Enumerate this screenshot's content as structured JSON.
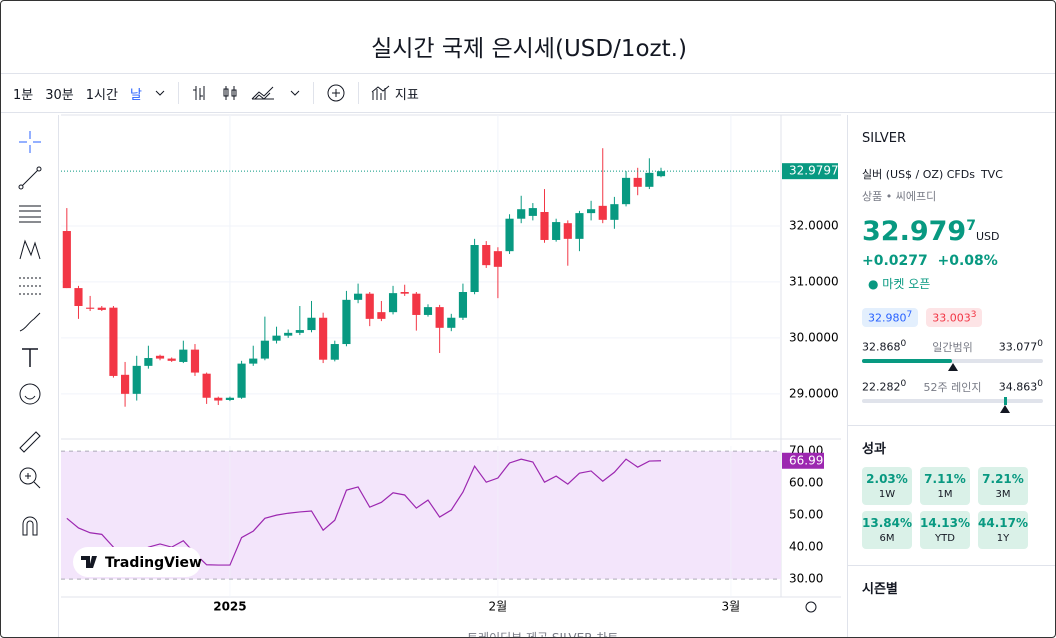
{
  "header": {
    "title": "실시간 국제 은시세(USD/1ozt.)"
  },
  "toolbar": {
    "intervals": [
      "1분",
      "30분",
      "1시간",
      "날"
    ],
    "indicators": "지표"
  },
  "chart_data": {
    "type": "candlestick",
    "open": [
      31.91,
      30.89,
      30.54,
      30.54,
      30.54,
      29.34,
      29.0,
      29.5,
      29.68,
      29.63,
      29.57,
      29.79,
      29.36,
      28.93,
      28.89,
      28.93,
      29.54,
      29.63,
      29.95,
      30.04,
      30.09,
      30.14,
      30.36,
      29.61,
      29.89,
      30.68,
      30.79,
      30.46,
      30.46,
      30.82,
      30.79,
      30.41,
      30.55,
      30.18,
      30.36,
      30.82,
      31.66,
      31.55,
      31.55,
      32.13,
      32.18,
      32.25,
      31.75,
      32.05,
      31.77,
      32.23,
      32.36,
      32.11,
      32.39,
      32.86,
      32.7,
      32.89
    ],
    "high": [
      32.32,
      30.93,
      30.75,
      30.57,
      30.57,
      29.57,
      29.68,
      29.86,
      29.7,
      29.65,
      29.95,
      29.89,
      29.38,
      28.95,
      28.95,
      29.59,
      29.86,
      30.38,
      30.2,
      30.15,
      30.57,
      30.66,
      30.45,
      29.95,
      30.84,
      30.97,
      30.82,
      30.66,
      30.93,
      30.95,
      30.82,
      30.6,
      30.59,
      30.43,
      30.97,
      31.77,
      31.73,
      31.62,
      32.21,
      32.54,
      32.41,
      32.66,
      32.13,
      32.1,
      32.27,
      32.45,
      33.39,
      32.52,
      32.98,
      33.04,
      33.21,
      33.04
    ],
    "low": [
      30.89,
      30.34,
      30.48,
      30.48,
      29.29,
      28.77,
      28.88,
      29.45,
      29.6,
      29.57,
      29.55,
      29.32,
      28.82,
      28.8,
      28.87,
      28.91,
      29.5,
      29.6,
      29.9,
      30.0,
      30.05,
      30.1,
      29.55,
      29.58,
      29.85,
      30.62,
      30.21,
      30.3,
      30.42,
      30.75,
      30.13,
      30.38,
      29.73,
      30.12,
      30.32,
      30.78,
      31.25,
      30.71,
      31.5,
      32.05,
      32.1,
      31.7,
      31.72,
      31.29,
      31.55,
      32.1,
      32.05,
      31.95,
      32.35,
      32.55,
      32.66,
      32.87
    ],
    "close": [
      30.89,
      30.57,
      30.52,
      30.5,
      29.32,
      29.0,
      29.5,
      29.64,
      29.63,
      29.59,
      29.79,
      29.38,
      28.93,
      28.88,
      28.93,
      29.54,
      29.63,
      29.95,
      30.04,
      30.09,
      30.14,
      30.36,
      29.61,
      29.89,
      30.68,
      30.79,
      30.34,
      30.34,
      30.8,
      30.79,
      30.41,
      30.55,
      30.18,
      30.36,
      30.82,
      31.66,
      31.3,
      31.27,
      32.13,
      32.3,
      32.32,
      31.75,
      32.07,
      31.77,
      32.23,
      32.3,
      32.11,
      32.39,
      32.86,
      32.7,
      32.95,
      32.9797
    ],
    "up_color": "#089981",
    "down_color": "#f23645",
    "ylim": [
      28.3,
      33.93
    ],
    "yticks": [
      {
        "value": 29,
        "label": "29.0000"
      },
      {
        "value": 30,
        "label": "30.0000"
      },
      {
        "value": 31,
        "label": "31.0000"
      },
      {
        "value": 32,
        "label": "32.0000"
      }
    ],
    "xlim": [
      -0.5,
      61.3
    ],
    "xticks": [
      {
        "value": 14,
        "label": "2025"
      },
      {
        "value": 37,
        "label": "2월"
      },
      {
        "value": 57,
        "label": "3월"
      }
    ],
    "grid": true,
    "rsi": {
      "color": "#9c27b0",
      "ylim": [
        26.3,
        71.6
      ],
      "values": [
        49,
        46,
        44.5,
        44,
        40,
        36,
        38,
        40,
        41,
        40,
        42,
        38,
        34.5,
        34.4,
        34.4,
        43,
        45,
        49,
        50,
        50.6,
        51,
        51.3,
        45.3,
        48.4,
        57.8,
        58.8,
        52.5,
        54,
        57,
        56.3,
        52.2,
        54.7,
        49.4,
        51.6,
        57.2,
        65.3,
        60.3,
        61.6,
        66.3,
        67.5,
        66.6,
        60.3,
        62.2,
        59.7,
        63.1,
        63.8,
        60.6,
        63.4,
        67.5,
        65,
        66.9,
        66.99
      ],
      "yticks": [
        {
          "value": 30,
          "label": "30.00"
        },
        {
          "value": 40,
          "label": "40.00"
        },
        {
          "value": 50,
          "label": "50.00"
        },
        {
          "value": 60,
          "label": "60.00"
        },
        {
          "value": 70,
          "label": "70.00"
        }
      ]
    },
    "watermark": "TradingView"
  },
  "sidebar": {
    "symbol": "SILVER",
    "description": "실버 (US$ / OZ) CFDs",
    "exchange": "TVC",
    "category": "상품 • 씨에프디",
    "price": {
      "main": "32.979",
      "fraction": "7",
      "currency": "USD"
    },
    "change": "+0.0277",
    "change_pct": "+0.08%",
    "status": "마켓 오픈",
    "bid": {
      "main": "32.980",
      "fraction": "7"
    },
    "ask": {
      "main": "33.003",
      "fraction": "3"
    },
    "day_range": {
      "low": {
        "main": "32.868",
        "fraction": "0"
      },
      "label": "일간범위",
      "high": {
        "main": "33.077",
        "fraction": "0"
      }
    },
    "year_range": {
      "low": {
        "main": "22.282",
        "fraction": "0"
      },
      "label": "52주 레인지",
      "high": {
        "main": "34.863",
        "fraction": "0"
      }
    },
    "performance_title": "성과",
    "performance": [
      {
        "value": "2.03%",
        "period": "1W"
      },
      {
        "value": "7.11%",
        "period": "1M"
      },
      {
        "value": "7.21%",
        "period": "3M"
      },
      {
        "value": "13.84%",
        "period": "6M"
      },
      {
        "value": "14.13%",
        "period": "YTD"
      },
      {
        "value": "44.17%",
        "period": "1Y"
      }
    ],
    "seasonal": "시즌별"
  },
  "footer": "트레이딩뷰 제공 SILVER 차트"
}
